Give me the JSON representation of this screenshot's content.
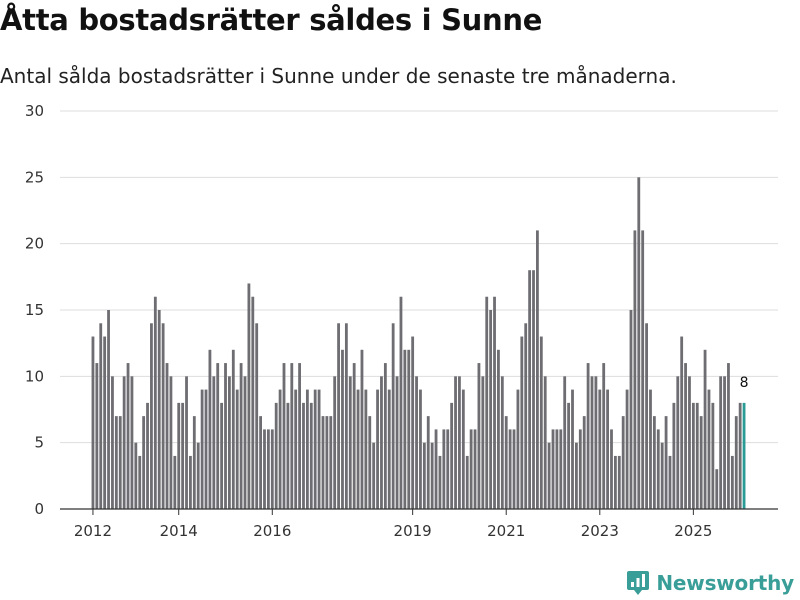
{
  "header": {
    "title": "Åtta bostadsrätter såldes i Sunne",
    "subtitle": "Antal sålda bostadsrätter i Sunne under de senaste tre månaderna."
  },
  "brand": {
    "name": "Newsworthy"
  },
  "colors": {
    "bar": "#6e6d72",
    "highlight": "#2a9a94",
    "grid": "#dddddd",
    "axis": "#333333",
    "brand": "#3a9e98"
  },
  "chart_data": {
    "type": "bar",
    "title": "Åtta bostadsrätter såldes i Sunne",
    "subtitle": "Antal sålda bostadsrätter i Sunne under de senaste tre månaderna.",
    "xlabel": "",
    "ylabel": "",
    "ylim": [
      0,
      30
    ],
    "yticks": [
      0,
      5,
      10,
      15,
      20,
      25,
      30
    ],
    "grid": true,
    "start_period": "2012-01",
    "frequency": "monthly (rolling 3-month total)",
    "xtick_labels": [
      {
        "label": "2012",
        "index": 0
      },
      {
        "label": "2014",
        "index": 22
      },
      {
        "label": "2016",
        "index": 46
      },
      {
        "label": "2019",
        "index": 82
      },
      {
        "label": "2021",
        "index": 106
      },
      {
        "label": "2023",
        "index": 130
      },
      {
        "label": "2025",
        "index": 154
      }
    ],
    "values": [
      13,
      11,
      14,
      13,
      15,
      10,
      7,
      7,
      10,
      11,
      10,
      5,
      4,
      7,
      8,
      14,
      16,
      15,
      14,
      11,
      10,
      4,
      8,
      8,
      10,
      4,
      7,
      5,
      9,
      9,
      12,
      10,
      11,
      8,
      11,
      10,
      12,
      9,
      11,
      10,
      17,
      16,
      14,
      7,
      6,
      6,
      6,
      8,
      9,
      11,
      8,
      11,
      9,
      11,
      8,
      9,
      8,
      9,
      9,
      7,
      7,
      7,
      10,
      14,
      12,
      14,
      10,
      11,
      9,
      12,
      9,
      7,
      5,
      9,
      10,
      11,
      9,
      14,
      10,
      16,
      12,
      12,
      13,
      10,
      9,
      5,
      7,
      5,
      6,
      4,
      6,
      6,
      8,
      10,
      10,
      9,
      4,
      6,
      6,
      11,
      10,
      16,
      15,
      16,
      12,
      10,
      7,
      6,
      6,
      9,
      13,
      14,
      18,
      18,
      21,
      13,
      10,
      5,
      6,
      6,
      6,
      10,
      8,
      9,
      5,
      6,
      7,
      11,
      10,
      10,
      9,
      11,
      9,
      6,
      4,
      4,
      7,
      9,
      15,
      21,
      25,
      21,
      14,
      9,
      7,
      6,
      5,
      7,
      4,
      8,
      10,
      13,
      11,
      10,
      8,
      8,
      7,
      12,
      9,
      8,
      3,
      10,
      10,
      11,
      4,
      7,
      8,
      8
    ],
    "highlight_index": 167,
    "annotations": [
      {
        "index": 167,
        "text": "8"
      }
    ]
  }
}
